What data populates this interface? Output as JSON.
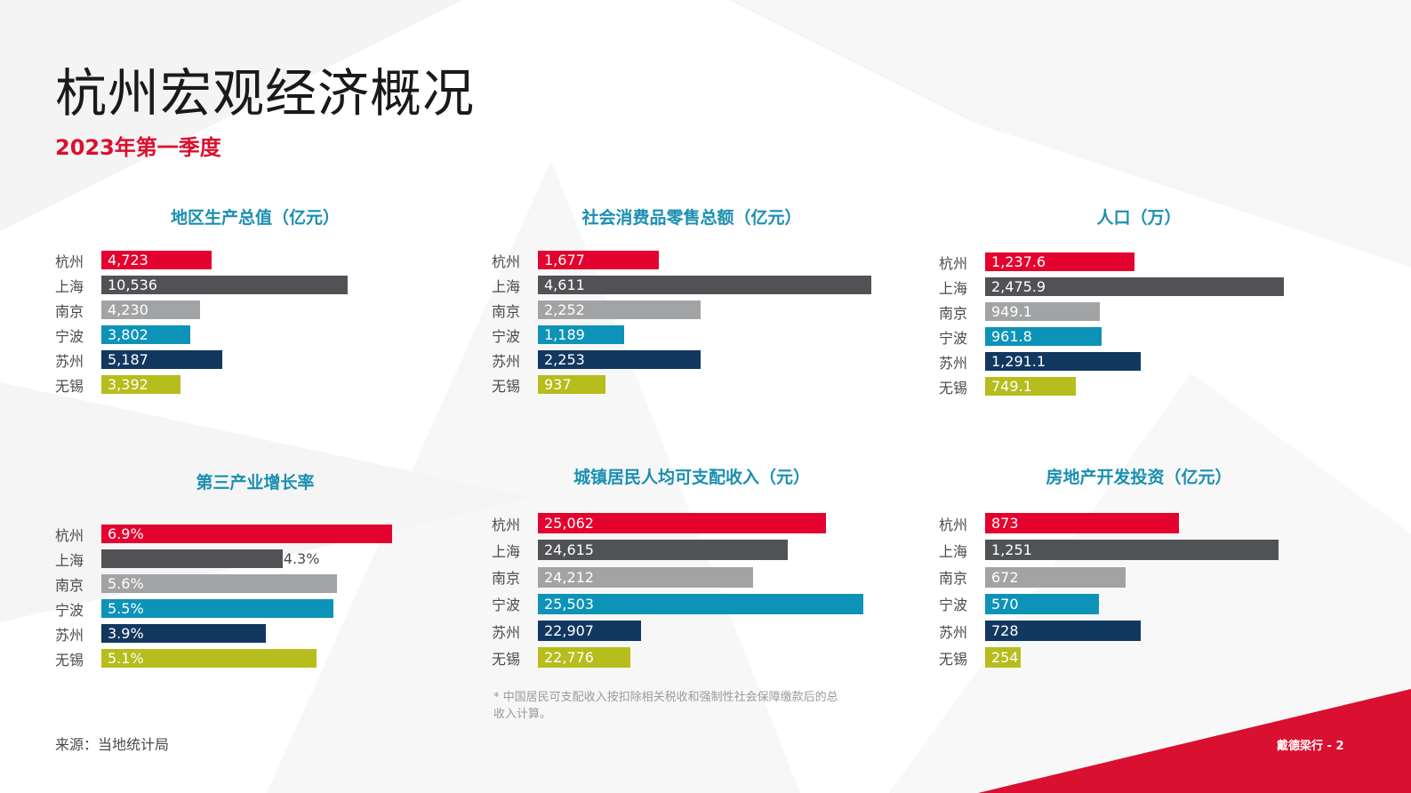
{
  "page": {
    "title": "杭州宏观经济概况",
    "subtitle": "2023年第一季度",
    "source": "来源：当地统计局",
    "footnote": "* 中国居民可支配收入按扣除相关税收和强制性社会保障缴款后的总收入计算。",
    "brand": "戴德梁行 - 2"
  },
  "colors": {
    "accent": "#d9102f",
    "chart_title": "#1a8fb1",
    "series": [
      "#e4032e",
      "#505255",
      "#a2a3a5",
      "#0e93b8",
      "#123860",
      "#b6bd1c"
    ]
  },
  "chart_data": [
    {
      "type": "bar",
      "orientation": "horizontal",
      "title": "地区生产总值（亿元）",
      "categories": [
        "杭州",
        "上海",
        "南京",
        "宁波",
        "苏州",
        "无锡"
      ],
      "values": [
        4723,
        10536,
        4230,
        3802,
        5187,
        3392
      ],
      "labels": [
        "4,723",
        "10,536",
        "4,230",
        "3,802",
        "5,187",
        "3,392"
      ],
      "xlim": [
        0,
        10536
      ],
      "grid": false,
      "legend": false
    },
    {
      "type": "bar",
      "orientation": "horizontal",
      "title": "社会消费品零售总额（亿元）",
      "categories": [
        "杭州",
        "上海",
        "南京",
        "宁波",
        "苏州",
        "无锡"
      ],
      "values": [
        1677,
        4611,
        2252,
        1189,
        2253,
        937
      ],
      "labels": [
        "1,677",
        "4,611",
        "2,252",
        "1,189",
        "2,253",
        "937"
      ],
      "xlim": [
        0,
        4611
      ],
      "grid": false,
      "legend": false
    },
    {
      "type": "bar",
      "orientation": "horizontal",
      "title": "人口（万）",
      "categories": [
        "杭州",
        "上海",
        "南京",
        "宁波",
        "苏州",
        "无锡"
      ],
      "values": [
        1237.6,
        2475.9,
        949.1,
        961.8,
        1291.1,
        749.1
      ],
      "labels": [
        "1,237.6",
        "2,475.9",
        "949.1",
        "961.8",
        "1,291.1",
        "749.1"
      ],
      "xlim": [
        0,
        2475.9
      ],
      "grid": false,
      "legend": false
    },
    {
      "type": "bar",
      "orientation": "horizontal",
      "title": "第三产业增长率",
      "categories": [
        "杭州",
        "上海",
        "南京",
        "宁波",
        "苏州",
        "无锡"
      ],
      "values": [
        6.9,
        4.3,
        5.6,
        5.5,
        3.9,
        5.1
      ],
      "labels": [
        "6.9%",
        "4.3%",
        "5.6%",
        "5.5%",
        "3.9%",
        "5.1%"
      ],
      "xlim": [
        0,
        6.9
      ],
      "grid": false,
      "legend": false
    },
    {
      "type": "bar",
      "orientation": "horizontal",
      "title": "城镇居民人均可支配收入（元）",
      "categories": [
        "杭州",
        "上海",
        "南京",
        "宁波",
        "苏州",
        "无锡"
      ],
      "values": [
        25062,
        24615,
        24212,
        25503,
        22907,
        22776
      ],
      "labels": [
        "25,062",
        "24,615",
        "24,212",
        "25,503",
        "22,907",
        "22,776"
      ],
      "grid": false,
      "legend": false
    },
    {
      "type": "bar",
      "orientation": "horizontal",
      "title": "房地产开发投资（亿元）",
      "categories": [
        "杭州",
        "上海",
        "南京",
        "宁波",
        "苏州",
        "无锡"
      ],
      "values": [
        873,
        1251,
        672,
        570,
        728,
        254
      ],
      "labels": [
        "873",
        "1,251",
        "672",
        "570",
        "728",
        "254"
      ],
      "grid": false,
      "legend": false
    }
  ]
}
